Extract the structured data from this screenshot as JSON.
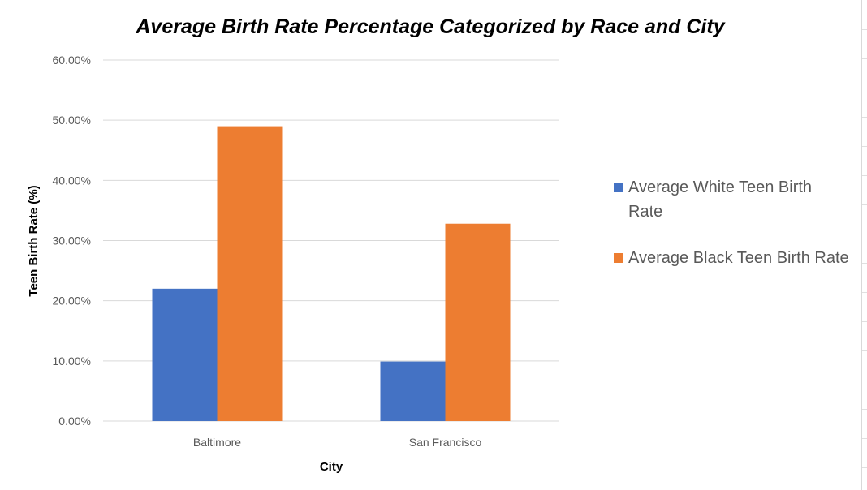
{
  "chart_data": {
    "type": "bar",
    "title": "Average Birth Rate Percentage Categorized by Race and City",
    "xlabel": "City",
    "ylabel": "Teen Birth Rate (%)",
    "categories": [
      "Baltimore",
      "San Francisco"
    ],
    "series": [
      {
        "name": "Average White Teen Birth Rate",
        "values": [
          0.22,
          0.099
        ],
        "color": "#4472C4"
      },
      {
        "name": "Average Black Teen Birth Rate",
        "values": [
          0.49,
          0.328
        ],
        "color": "#ED7D31"
      }
    ],
    "ylim": [
      0,
      0.6
    ],
    "yticks": [
      0,
      0.1,
      0.2,
      0.3,
      0.4,
      0.5,
      0.6
    ],
    "ytick_labels": [
      "0.00%",
      "10.00%",
      "20.00%",
      "30.00%",
      "40.00%",
      "50.00%",
      "60.00%"
    ],
    "grid": true,
    "legend_position": "right",
    "gridline_color": "#d9d9d9"
  }
}
